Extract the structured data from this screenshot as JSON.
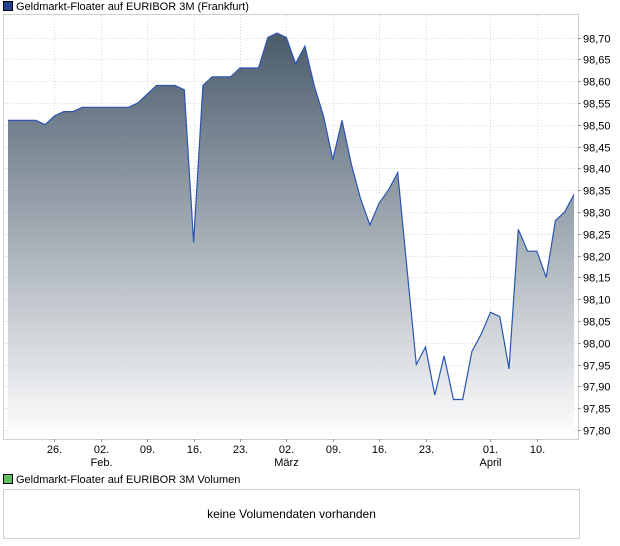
{
  "legend": {
    "price_label": "Geldmarkt-Floater auf EURIBOR 3M (Frankfurt)",
    "price_color": "#1f3f8f",
    "volume_label": "Geldmarkt-Floater auf EURIBOR 3M Volumen",
    "volume_color": "#5fbf5f"
  },
  "volume": {
    "message": "keine Volumendaten vorhanden"
  },
  "chart_data": {
    "type": "area",
    "title": "",
    "xlabel": "",
    "ylabel": "",
    "ylim": [
      97.77,
      98.75
    ],
    "grid": true,
    "line_color": "#2a55b0",
    "fill_top_color": "#4a5b6c",
    "fill_bottom_color": "#ffffff",
    "y_ticks": [
      "98,70",
      "98,65",
      "98,60",
      "98,55",
      "98,50",
      "98,45",
      "98,40",
      "98,35",
      "98,30",
      "98,25",
      "98,20",
      "98,15",
      "98,10",
      "98,05",
      "98,00",
      "97,95",
      "97,90",
      "97,85",
      "97,80"
    ],
    "x_ticks": [
      {
        "index": 5,
        "day": "26.",
        "month": ""
      },
      {
        "index": 10,
        "day": "02.",
        "month": "Feb."
      },
      {
        "index": 15,
        "day": "09.",
        "month": ""
      },
      {
        "index": 20,
        "day": "16.",
        "month": ""
      },
      {
        "index": 25,
        "day": "23.",
        "month": ""
      },
      {
        "index": 30,
        "day": "02.",
        "month": "März"
      },
      {
        "index": 35,
        "day": "09.",
        "month": ""
      },
      {
        "index": 40,
        "day": "16.",
        "month": ""
      },
      {
        "index": 45,
        "day": "23.",
        "month": ""
      },
      {
        "index": 52,
        "day": "01.",
        "month": "April"
      },
      {
        "index": 57,
        "day": "10.",
        "month": ""
      }
    ],
    "values": [
      98.51,
      98.51,
      98.51,
      98.51,
      98.5,
      98.52,
      98.53,
      98.53,
      98.54,
      98.54,
      98.54,
      98.54,
      98.54,
      98.54,
      98.55,
      98.57,
      98.59,
      98.59,
      98.59,
      98.58,
      98.23,
      98.59,
      98.61,
      98.61,
      98.61,
      98.63,
      98.63,
      98.63,
      98.7,
      98.71,
      98.7,
      98.64,
      98.68,
      98.59,
      98.52,
      98.42,
      98.51,
      98.41,
      98.33,
      98.27,
      98.32,
      98.35,
      98.39,
      98.17,
      97.95,
      97.99,
      97.88,
      97.97,
      97.87,
      97.87,
      97.98,
      98.02,
      98.07,
      98.06,
      97.94,
      98.26,
      98.21,
      98.21,
      98.15,
      98.28,
      98.3,
      98.34
    ]
  }
}
